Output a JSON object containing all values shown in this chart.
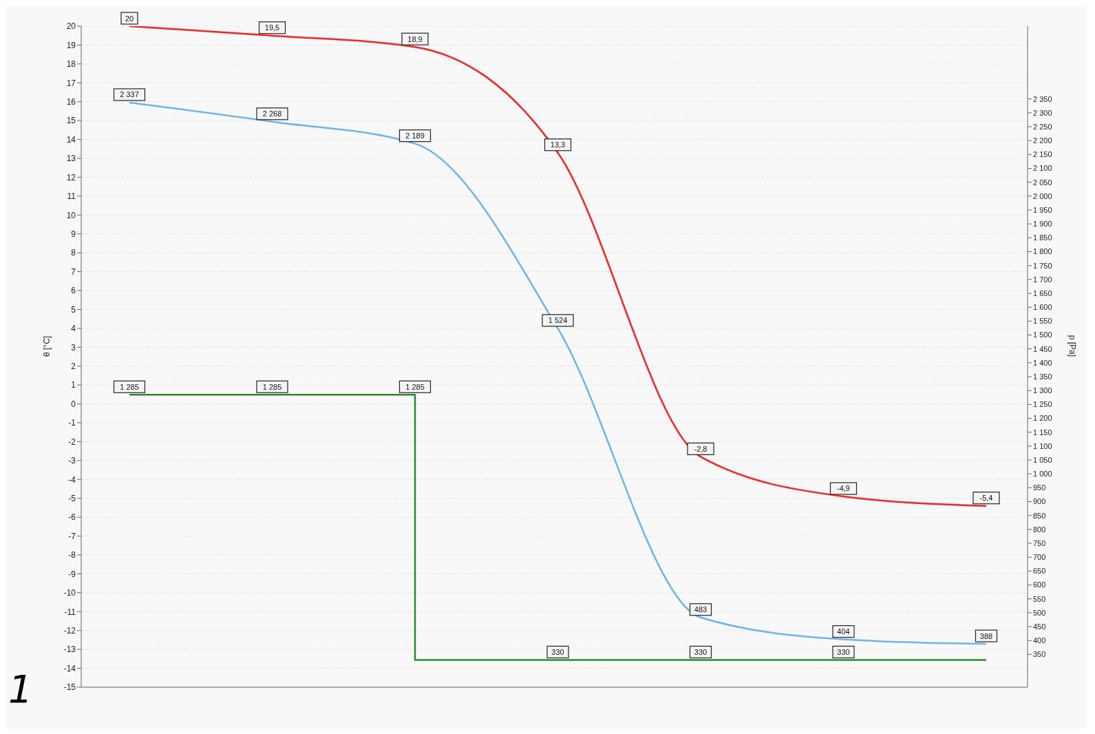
{
  "chart_data": {
    "type": "line",
    "ylabel": "θ [°C]",
    "y2label": "p [Pa]",
    "categories": [
      null,
      null,
      null,
      null,
      null,
      null,
      null
    ],
    "series": [
      {
        "color": "#ff2020",
        "values": [
          20,
          19.5,
          18.9,
          13.3,
          -2.8,
          -4.9,
          -5.4
        ],
        "value_labels": [
          "20",
          "19,5",
          "18,9",
          "13,3",
          "-2,8",
          "-4,9",
          "-5,4"
        ]
      },
      {
        "color": "#6cb4ee",
        "axis": "y2",
        "values": [
          2337,
          2268,
          2189,
          1524,
          483,
          404,
          388
        ],
        "value_labels": [
          "2 337",
          "2 268",
          "2 189",
          "1 524",
          "483",
          "404",
          "388"
        ]
      },
      {
        "type": "step",
        "color": "#2a8a2a",
        "axis": "y2",
        "values": [
          1285,
          1285,
          1285,
          330,
          330,
          330,
          330
        ],
        "value_labels": [
          "1 285",
          "1 285",
          "1 285",
          "330",
          "330",
          "330",
          null
        ]
      }
    ],
    "ylim": [
      -15,
      20
    ],
    "yticks": [
      -15,
      -14,
      -13,
      -12,
      -11,
      -10,
      -9,
      -8,
      -7,
      -6,
      -5,
      -4,
      -3,
      -2,
      -1,
      0,
      1,
      2,
      3,
      4,
      5,
      6,
      7,
      8,
      9,
      10,
      11,
      12,
      13,
      14,
      15,
      16,
      17,
      18,
      19,
      20
    ],
    "y2lim": [
      232,
      2612
    ],
    "y2ticks": [
      350,
      400,
      450,
      500,
      550,
      600,
      650,
      700,
      750,
      800,
      850,
      900,
      950,
      {
        "value": 1000,
        "label": "1 000"
      },
      {
        "value": 1050,
        "label": "1 050"
      },
      {
        "value": 1100,
        "label": "1 100"
      },
      {
        "value": 1150,
        "label": "1 150"
      },
      {
        "value": 1200,
        "label": "1 200"
      },
      {
        "value": 1250,
        "label": "1 250"
      },
      {
        "value": 1300,
        "label": "1 300"
      },
      {
        "value": 1350,
        "label": "1 350"
      },
      {
        "value": 1400,
        "label": "1 400"
      },
      {
        "value": 1450,
        "label": "1 450"
      },
      {
        "value": 1500,
        "label": "1 500"
      },
      {
        "value": 1550,
        "label": "1 550"
      },
      {
        "value": 1600,
        "label": "1 600"
      },
      {
        "value": 1650,
        "label": "1 650"
      },
      {
        "value": 1700,
        "label": "1 700"
      },
      {
        "value": 1750,
        "label": "1 750"
      },
      {
        "value": 1800,
        "label": "1 800"
      },
      {
        "value": 1850,
        "label": "1 850"
      },
      {
        "value": 1900,
        "label": "1 900"
      },
      {
        "value": 1950,
        "label": "1 950"
      },
      {
        "value": 2000,
        "label": "2 000"
      },
      {
        "value": 2050,
        "label": "2 050"
      },
      {
        "value": 2100,
        "label": "2 100"
      },
      {
        "value": 2150,
        "label": "2 150"
      },
      {
        "value": 2200,
        "label": "2 200"
      },
      {
        "value": 2250,
        "label": "2 250"
      },
      {
        "value": 2300,
        "label": "2 300"
      },
      {
        "value": 2350,
        "label": "2 350"
      }
    ],
    "grid": "y",
    "marker": "none",
    "annotations": [
      "1"
    ]
  }
}
